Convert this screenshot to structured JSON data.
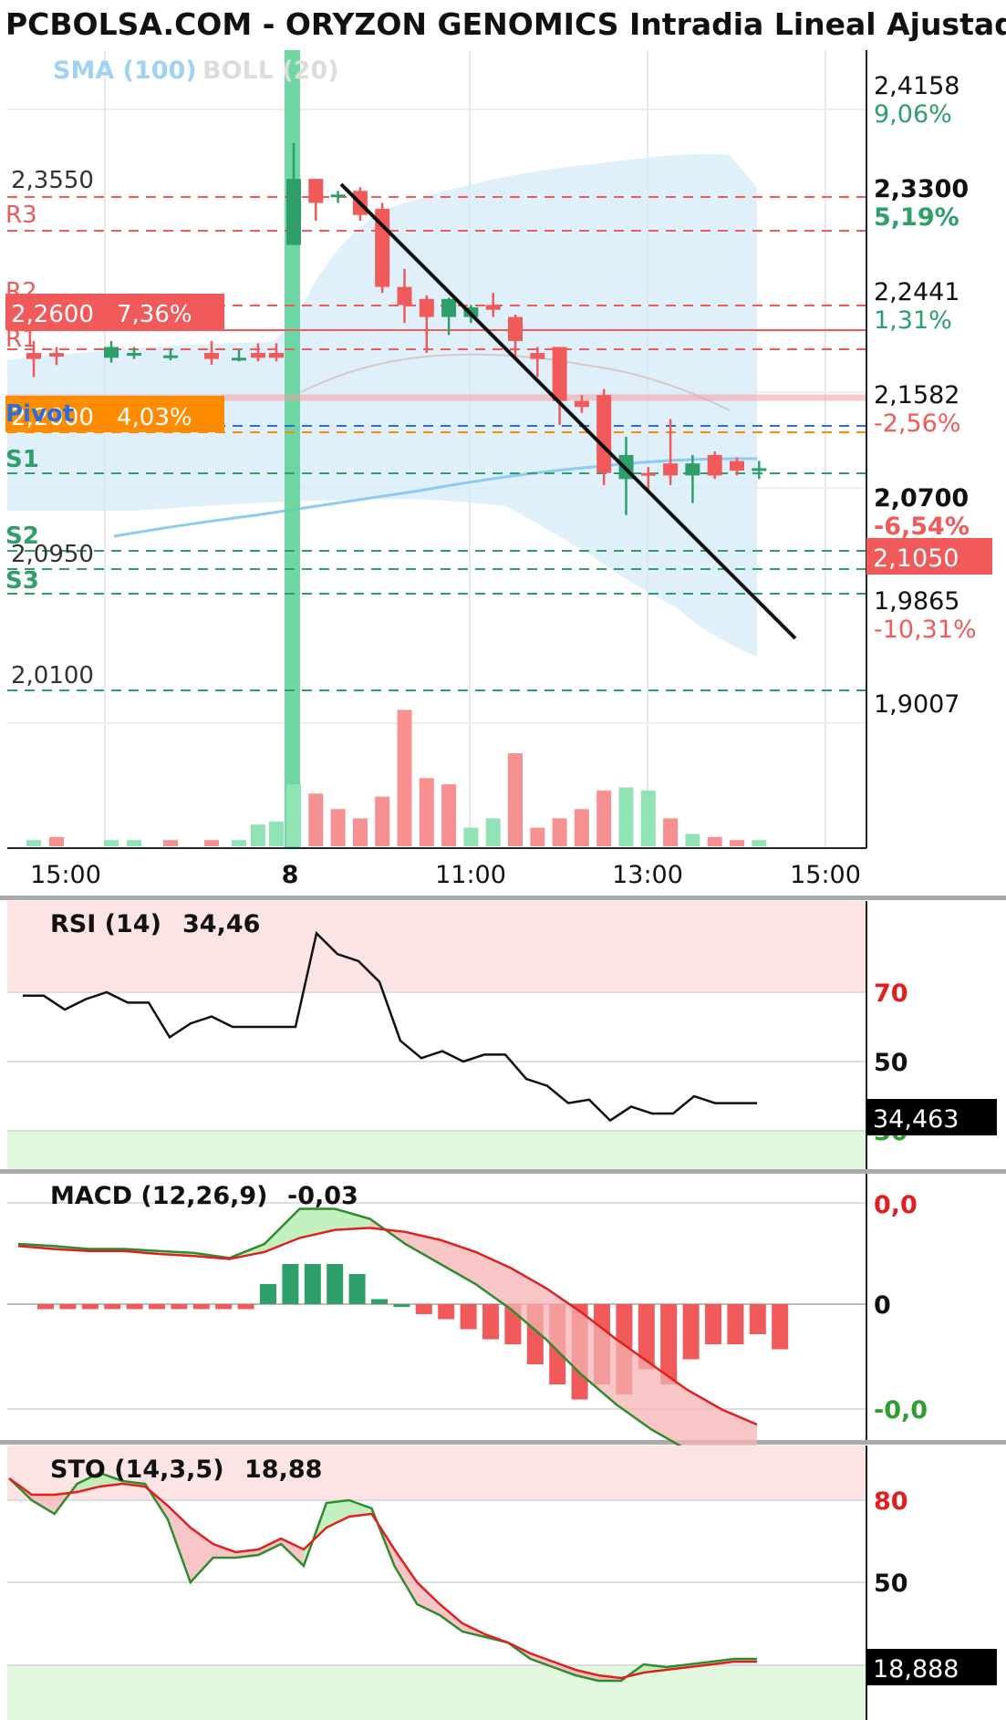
{
  "title": "PCBOLSA.COM - ORYZON GENOMICS Intradia Lineal Ajustado a Div",
  "legend": {
    "sma": "SMA (100)",
    "boll": "BOLL (20)"
  },
  "colors": {
    "up": "#2e9e6b",
    "down": "#f05a5a",
    "band": "#d6ebf8",
    "sma": "#8fcaf0",
    "pivot": "#ff8c00",
    "trend": "#111111"
  },
  "price_axis": [
    {
      "value": "2,4158",
      "pct": "9,06%",
      "pct_color": "#2e9e6b",
      "bold": false
    },
    {
      "value": "2,3300",
      "pct": "5,19%",
      "pct_color": "#2e9e6b",
      "bold": true
    },
    {
      "value": "2,2441",
      "pct": "1,31%",
      "pct_color": "#2e9e6b",
      "bold": false
    },
    {
      "value": "2,1582",
      "pct": "-2,56%",
      "pct_color": "#f05a5a",
      "bold": false
    },
    {
      "value": "2,0700",
      "pct": "-6,54%",
      "pct_color": "#f05a5a",
      "bold": true
    },
    {
      "value": "1,9865",
      "pct": "-10,31%",
      "pct_color": "#f05a5a",
      "bold": false
    },
    {
      "value": "1,9007",
      "pct": "",
      "pct_color": "#f05a5a",
      "bold": false
    }
  ],
  "current_price": "2,1050",
  "levels": {
    "labels": [
      "R3",
      "R2",
      "R1",
      "Pivot",
      "S1",
      "S2",
      "S3"
    ],
    "left_values": [
      "2,3550",
      "2,0950",
      "2,0100"
    ],
    "resistance_box": {
      "value": "2,2600",
      "pct": "7,36%"
    },
    "pivot_box": {
      "value": "2,2000",
      "pct": "4,03%"
    }
  },
  "time_axis": [
    "15:00",
    "8",
    "11:00",
    "13:00",
    "15:00"
  ],
  "rsi": {
    "label": "RSI (14)",
    "value": "34,46",
    "current": "34,463",
    "levels": [
      "70",
      "50",
      "30"
    ]
  },
  "macd": {
    "label": "MACD (12,26,9)",
    "value": "-0,03",
    "levels": [
      "0,0",
      "0",
      "-0,0"
    ]
  },
  "sto": {
    "label": "STO (14,3,5)",
    "value": "18,88",
    "current": "18,888",
    "levels": [
      "80",
      "50"
    ]
  },
  "chart_data": {
    "type": "candlestick",
    "title": "PCBOLSA.COM - ORYZON GENOMICS Intradia Lineal Ajustado a Div",
    "ylim": [
      1.9007,
      2.4158
    ],
    "candles": [
      {
        "o": 2.2,
        "h": 2.21,
        "l": 2.18,
        "c": 2.195
      },
      {
        "o": 2.2,
        "h": 2.205,
        "l": 2.19,
        "c": 2.197
      },
      {
        "o": 2.196,
        "h": 2.21,
        "l": 2.192,
        "c": 2.205
      },
      {
        "o": 2.198,
        "h": 2.205,
        "l": 2.195,
        "c": 2.2
      },
      {
        "o": 2.198,
        "h": 2.204,
        "l": 2.194,
        "c": 2.198
      },
      {
        "o": 2.2,
        "h": 2.21,
        "l": 2.19,
        "c": 2.195
      },
      {
        "o": 2.196,
        "h": 2.203,
        "l": 2.193,
        "c": 2.196
      },
      {
        "o": 2.2,
        "h": 2.208,
        "l": 2.193,
        "c": 2.196
      },
      {
        "o": 2.2,
        "h": 2.208,
        "l": 2.193,
        "c": 2.196
      },
      {
        "o": 2.29,
        "h": 2.375,
        "l": 2.29,
        "c": 2.345
      },
      {
        "o": 2.345,
        "h": 2.345,
        "l": 2.31,
        "c": 2.325
      },
      {
        "o": 2.33,
        "h": 2.335,
        "l": 2.325,
        "c": 2.332
      },
      {
        "o": 2.335,
        "h": 2.338,
        "l": 2.31,
        "c": 2.315
      },
      {
        "o": 2.32,
        "h": 2.325,
        "l": 2.25,
        "c": 2.255
      },
      {
        "o": 2.255,
        "h": 2.27,
        "l": 2.225,
        "c": 2.24
      },
      {
        "o": 2.245,
        "h": 2.248,
        "l": 2.2,
        "c": 2.23
      },
      {
        "o": 2.23,
        "h": 2.246,
        "l": 2.215,
        "c": 2.245
      },
      {
        "o": 2.23,
        "h": 2.24,
        "l": 2.225,
        "c": 2.238
      },
      {
        "o": 2.24,
        "h": 2.25,
        "l": 2.23,
        "c": 2.236
      },
      {
        "o": 2.23,
        "h": 2.232,
        "l": 2.195,
        "c": 2.21
      },
      {
        "o": 2.2,
        "h": 2.205,
        "l": 2.18,
        "c": 2.195
      },
      {
        "o": 2.205,
        "h": 2.205,
        "l": 2.14,
        "c": 2.16
      },
      {
        "o": 2.16,
        "h": 2.165,
        "l": 2.15,
        "c": 2.155
      },
      {
        "o": 2.165,
        "h": 2.17,
        "l": 2.09,
        "c": 2.1
      },
      {
        "o": 2.095,
        "h": 2.13,
        "l": 2.065,
        "c": 2.115
      },
      {
        "o": 2.1,
        "h": 2.105,
        "l": 2.085,
        "c": 2.098
      },
      {
        "o": 2.108,
        "h": 2.145,
        "l": 2.09,
        "c": 2.098
      },
      {
        "o": 2.098,
        "h": 2.115,
        "l": 2.075,
        "c": 2.108
      },
      {
        "o": 2.115,
        "h": 2.118,
        "l": 2.095,
        "c": 2.098
      },
      {
        "o": 2.11,
        "h": 2.113,
        "l": 2.098,
        "c": 2.102
      },
      {
        "o": 2.104,
        "h": 2.11,
        "l": 2.095,
        "c": 2.104
      }
    ],
    "volume": [
      {
        "v": 2,
        "up": true
      },
      {
        "v": 3,
        "up": false
      },
      {
        "v": 2,
        "up": true
      },
      {
        "v": 2,
        "up": true
      },
      {
        "v": 2,
        "up": false
      },
      {
        "v": 2,
        "up": false
      },
      {
        "v": 2,
        "up": true
      },
      {
        "v": 7,
        "up": true
      },
      {
        "v": 8,
        "up": true
      },
      {
        "v": 20,
        "up": true
      },
      {
        "v": 17,
        "up": false
      },
      {
        "v": 12,
        "up": false
      },
      {
        "v": 9,
        "up": false
      },
      {
        "v": 16,
        "up": false
      },
      {
        "v": 44,
        "up": false
      },
      {
        "v": 22,
        "up": false
      },
      {
        "v": 20,
        "up": false
      },
      {
        "v": 6,
        "up": true
      },
      {
        "v": 9,
        "up": true
      },
      {
        "v": 30,
        "up": false
      },
      {
        "v": 6,
        "up": false
      },
      {
        "v": 9,
        "up": false
      },
      {
        "v": 12,
        "up": false
      },
      {
        "v": 18,
        "up": false
      },
      {
        "v": 19,
        "up": true
      },
      {
        "v": 18,
        "up": true
      },
      {
        "v": 9,
        "up": false
      },
      {
        "v": 4,
        "up": true
      },
      {
        "v": 3,
        "up": false
      },
      {
        "v": 2,
        "up": false
      },
      {
        "v": 2,
        "up": true
      }
    ],
    "rsi_values": [
      69,
      69,
      65,
      68,
      70,
      67,
      67,
      57,
      61,
      63,
      60,
      60,
      60,
      60,
      87,
      81,
      79,
      73,
      56,
      51,
      53,
      50,
      52,
      52,
      45,
      43,
      38,
      39,
      33,
      37,
      35,
      35,
      40,
      38,
      38,
      38
    ],
    "sto_k": [
      88,
      80,
      75,
      86,
      90,
      87,
      86,
      73,
      50,
      59,
      59,
      60,
      64,
      56,
      79,
      80,
      77,
      56,
      42,
      38,
      32,
      30,
      28,
      22,
      19,
      16,
      14,
      14,
      20,
      19,
      20,
      21,
      22,
      22
    ],
    "sto_d": [
      88,
      82,
      82,
      83,
      85,
      86,
      85,
      78,
      70,
      64,
      61,
      62,
      66,
      62,
      70,
      74,
      75,
      62,
      50,
      42,
      35,
      31,
      28,
      24,
      21,
      18,
      16,
      15,
      17,
      18,
      19,
      20,
      21,
      21
    ],
    "macd_line": [
      0.6,
      0.58,
      0.55,
      0.55,
      0.53,
      0.51,
      0.46,
      0.6,
      0.95,
      0.95,
      0.85,
      0.6,
      0.4,
      0.2,
      -0.05,
      -0.35,
      -0.7,
      -1.0,
      -1.25,
      -1.45,
      -1.55,
      -1.6
    ],
    "macd_signal": [
      0.58,
      0.55,
      0.53,
      0.53,
      0.5,
      0.48,
      0.45,
      0.52,
      0.66,
      0.74,
      0.76,
      0.72,
      0.64,
      0.52,
      0.36,
      0.16,
      -0.08,
      -0.35,
      -0.6,
      -0.85,
      -1.05,
      -1.2
    ],
    "macd_hist": [
      -0.05,
      -0.05,
      -0.05,
      -0.05,
      -0.05,
      -0.05,
      -0.05,
      -0.05,
      -0.05,
      -0.05,
      0.2,
      0.4,
      0.4,
      0.4,
      0.3,
      0.05,
      0.0,
      -0.1,
      -0.15,
      -0.25,
      -0.35,
      -0.4,
      -0.6,
      -0.8,
      -0.95,
      -0.8,
      -0.9,
      -0.65,
      -0.8,
      -0.55,
      -0.4,
      -0.4,
      -0.3,
      -0.45
    ]
  }
}
